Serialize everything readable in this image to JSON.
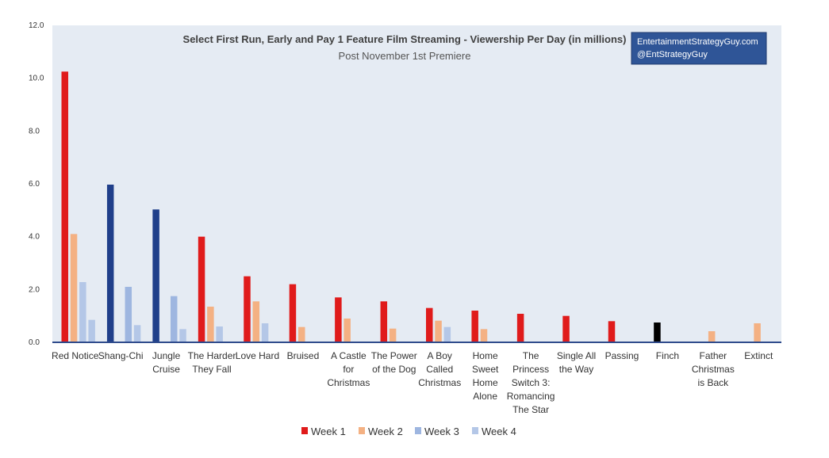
{
  "chart_data": {
    "type": "bar",
    "title": "Select First Run, Early and Pay 1 Feature Film Streaming - Viewership Per Day (in millions)",
    "subtitle": "Post November 1st Premiere",
    "watermark": [
      "EntertainmentStrategyGuy.com",
      "@EntStrategyGuy"
    ],
    "ylim": [
      0,
      12
    ],
    "yticks": [
      "0.0",
      "2.0",
      "4.0",
      "6.0",
      "8.0",
      "10.0",
      "12.0"
    ],
    "grid": false,
    "legend_position": "bottom",
    "categories": [
      [
        "Red Notice"
      ],
      [
        "Shang-Chi"
      ],
      [
        "Jungle",
        "Cruise"
      ],
      [
        "The Harder",
        "They Fall"
      ],
      [
        "Love Hard"
      ],
      [
        "Bruised"
      ],
      [
        "A Castle",
        "for",
        "Christmas"
      ],
      [
        "The Power",
        "of the Dog"
      ],
      [
        "A Boy",
        "Called",
        "Christmas"
      ],
      [
        "Home",
        "Sweet",
        "Home",
        "Alone"
      ],
      [
        "The",
        "Princess",
        "Switch 3:",
        "Romancing",
        "The Star"
      ],
      [
        "Single All",
        "the Way"
      ],
      [
        "Passing"
      ],
      [
        "Finch"
      ],
      [
        "Father",
        "Christmas",
        "is Back"
      ],
      [
        "Extinct"
      ]
    ],
    "series": [
      {
        "name": "Week 1",
        "color": "#E01B1B",
        "values": [
          10.25,
          null,
          null,
          4.0,
          2.5,
          2.2,
          1.7,
          1.55,
          1.3,
          1.2,
          1.08,
          1.0,
          0.8,
          0.75,
          null,
          null
        ]
      },
      {
        "name": "Week 2",
        "color": "#F4B183",
        "values": [
          4.1,
          null,
          null,
          1.35,
          1.55,
          0.58,
          0.9,
          0.52,
          0.82,
          0.5,
          null,
          null,
          null,
          null,
          0.42,
          0.72
        ]
      },
      {
        "name": "Week 3",
        "color": "#B4C7E7",
        "values": [
          2.28,
          2.1,
          1.75,
          0.6,
          0.72,
          null,
          null,
          null,
          0.58,
          null,
          null,
          null,
          null,
          null,
          null,
          null
        ]
      },
      {
        "name": "Week 4",
        "color": "#B4C7E7",
        "values": [
          0.85,
          0.65,
          0.5,
          null,
          null,
          null,
          null,
          null,
          null,
          null,
          null,
          null,
          null,
          null,
          null,
          null
        ]
      }
    ],
    "week1_overrides": [
      {
        "category_index": 1,
        "value": 5.97,
        "color": "#203F8A"
      },
      {
        "category_index": 2,
        "value": 5.03,
        "color": "#203F8A"
      },
      {
        "category_index": 13,
        "value": 0.75,
        "color": "#000000"
      }
    ],
    "week3_strong_color": "#9EB6E0",
    "legend_week3_color": "#9EB6E0",
    "colors": {
      "plot_background": "#E5EBF3",
      "axis_line": "#2F4B8C",
      "watermark_box": "#2F5597"
    }
  }
}
